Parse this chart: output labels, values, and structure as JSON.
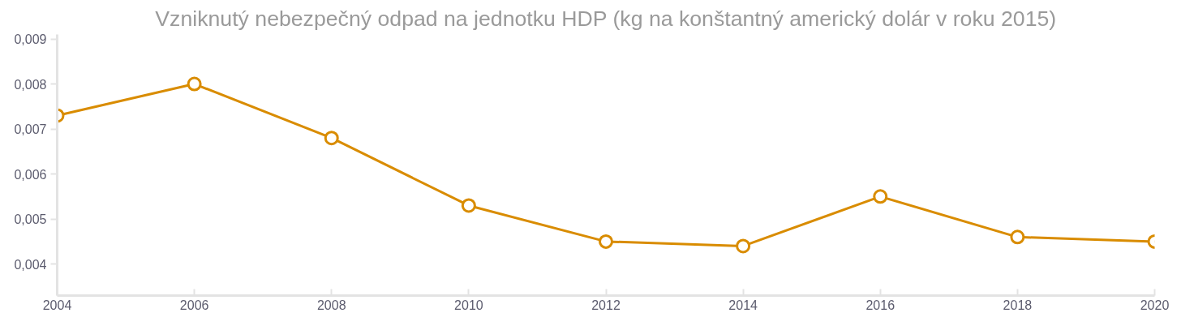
{
  "chart_data": {
    "type": "line",
    "title": "Vzniknutý nebezpečný odpad na jednotku HDP (kg na konštantný americký dolár v roku 2015)",
    "x": [
      2004,
      2006,
      2008,
      2010,
      2012,
      2014,
      2016,
      2018,
      2020
    ],
    "series": [
      {
        "color": "#d98c00",
        "values": [
          0.0073,
          0.008,
          0.0068,
          0.0053,
          0.0045,
          0.0044,
          0.0055,
          0.0046,
          0.0045
        ]
      }
    ],
    "xlim": [
      2004,
      2020
    ],
    "xticks": [
      2004,
      2006,
      2008,
      2010,
      2012,
      2014,
      2016,
      2018,
      2020
    ],
    "ylim": [
      0.0033,
      0.0091
    ],
    "yticks": [
      {
        "value": 0.004,
        "label": "0,004"
      },
      {
        "value": 0.005,
        "label": "0,005"
      },
      {
        "value": 0.006,
        "label": "0,006"
      },
      {
        "value": 0.007,
        "label": "0,007"
      },
      {
        "value": 0.008,
        "label": "0,008"
      },
      {
        "value": 0.009,
        "label": "0,009"
      }
    ],
    "grid": false,
    "marker": "circle",
    "line_style": "solid"
  }
}
